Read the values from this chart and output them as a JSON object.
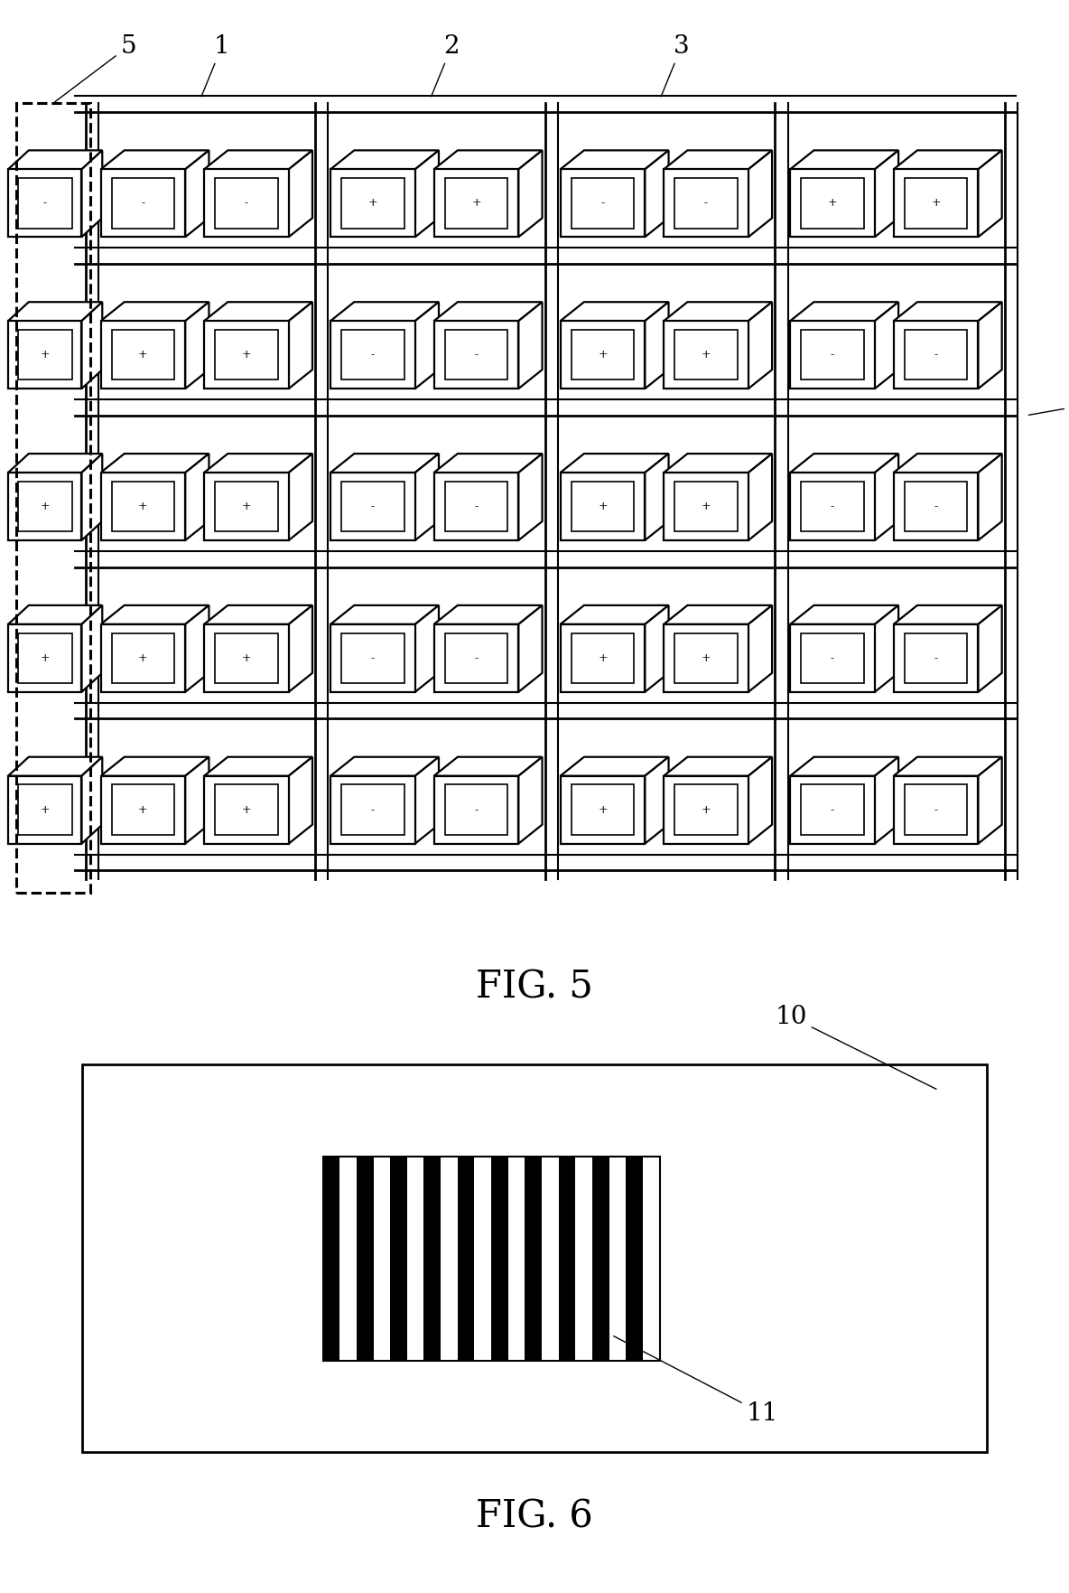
{
  "fig_width": 11.84,
  "fig_height": 17.63,
  "bg_color": "#ffffff",
  "fig5": {
    "title": "FIG. 5",
    "title_fontsize": 30,
    "nrows": 5,
    "ncols": 4,
    "sign_patterns": [
      [
        "+",
        "+",
        "-",
        "-",
        "+",
        "+",
        "-",
        "-",
        "+"
      ],
      [
        "+",
        "+",
        "-",
        "-",
        "+",
        "+",
        "-",
        "-",
        "+"
      ],
      [
        "+",
        "+",
        "-",
        "-",
        "+",
        "+",
        "-",
        "-",
        "+"
      ],
      [
        "+",
        "+",
        "-",
        "-",
        "+",
        "+",
        "-",
        "-",
        "+"
      ],
      [
        "-",
        "-",
        "+",
        "+",
        "-",
        "-",
        "+",
        "+",
        "-"
      ]
    ]
  },
  "fig6": {
    "title": "FIG. 6",
    "title_fontsize": 30,
    "n_stripes": 20
  }
}
